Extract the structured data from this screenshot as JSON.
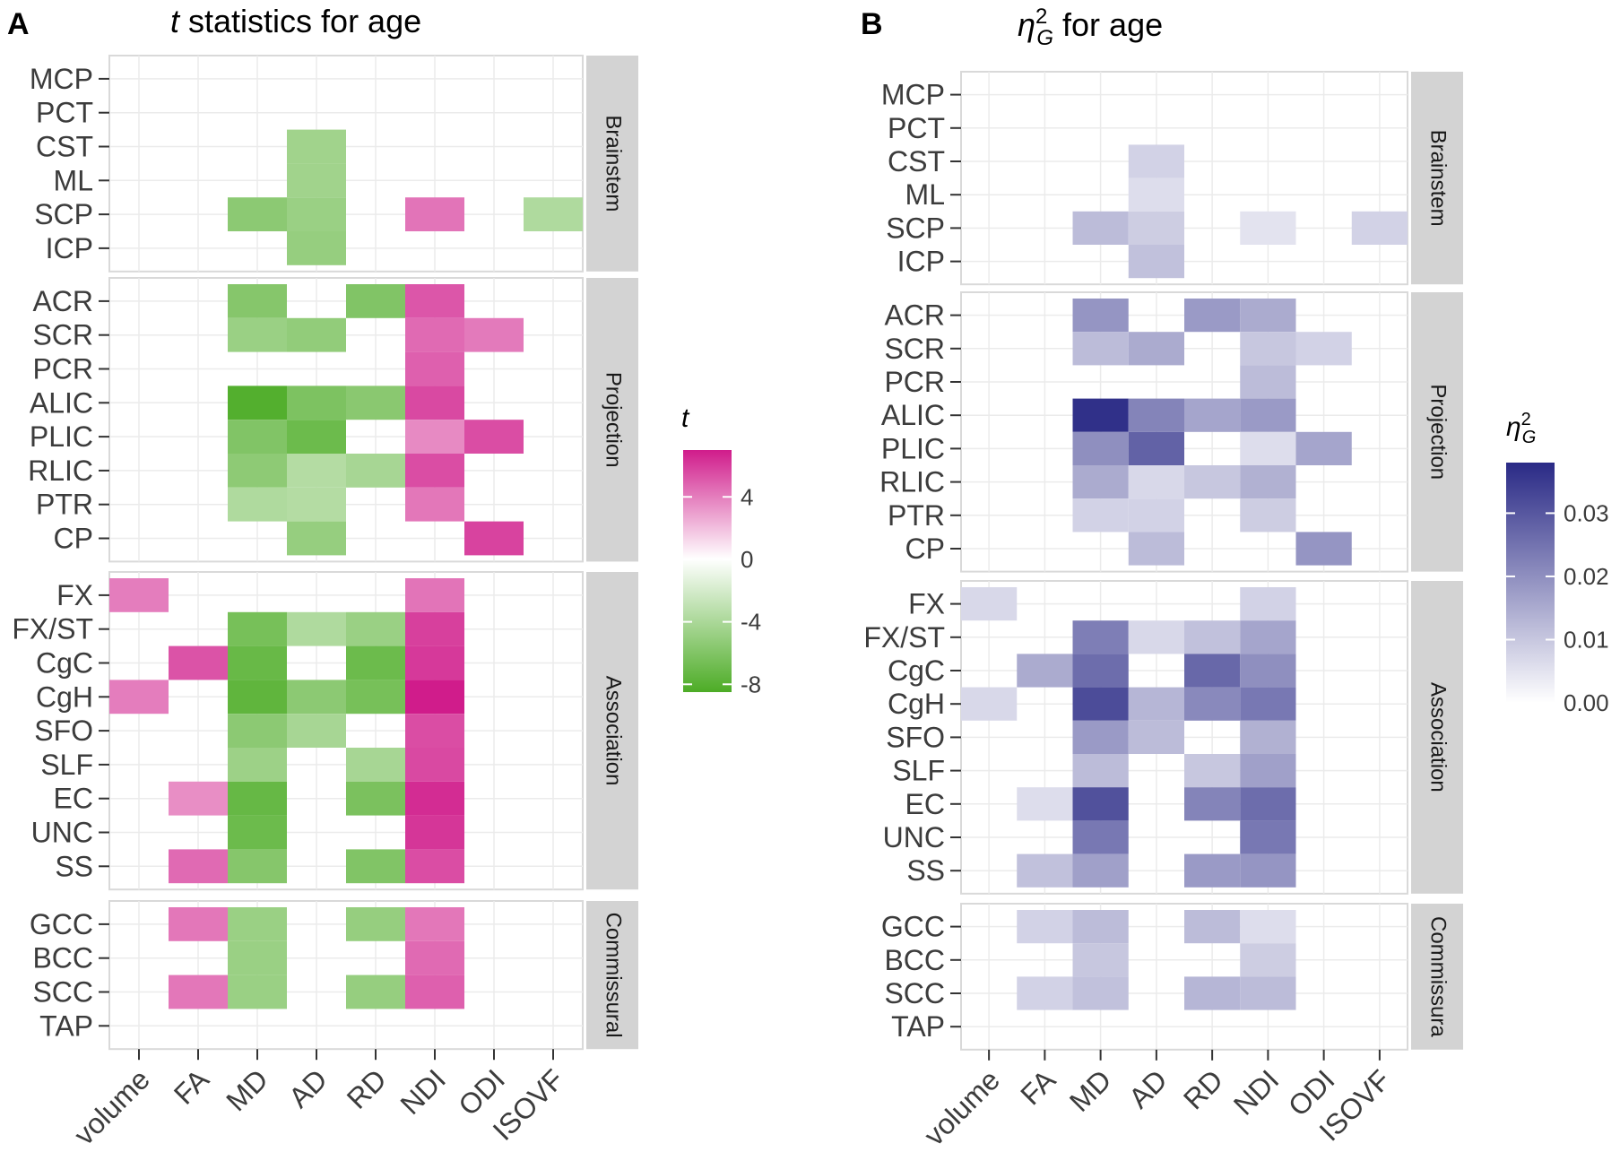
{
  "colors": {
    "green_max": "#4DAC26",
    "pink_max": "#D01C8B",
    "purple_max": "#2A2A86",
    "strip_fill": "#D3D3D3",
    "grid": "#EBEBEB",
    "panel_border": "#D9D9D9"
  },
  "chart_data": [
    {
      "type": "heatmap",
      "panel_label": "A",
      "title_italic": "t",
      "title_rest": " statistics for age",
      "x_categories": [
        "volume",
        "FA",
        "MD",
        "AD",
        "RD",
        "NDI",
        "ODI",
        "ISOVF"
      ],
      "facets": [
        {
          "name": "Brainstem",
          "rows": [
            "MCP",
            "PCT",
            "CST",
            "ML",
            "SCP",
            "ICP"
          ]
        },
        {
          "name": "Projection",
          "rows": [
            "ACR",
            "SCR",
            "PCR",
            "ALIC",
            "PLIC",
            "RLIC",
            "PTR",
            "CP"
          ]
        },
        {
          "name": "Association",
          "rows": [
            "FX",
            "FX/ST",
            "CgC",
            "CgH",
            "SFO",
            "SLF",
            "EC",
            "UNC",
            "SS"
          ]
        },
        {
          "name": "Commissural",
          "rows": [
            "GCC",
            "BCC",
            "SCC",
            "TAP"
          ]
        }
      ],
      "cells": [
        [
          "CST",
          "AD",
          -4.5
        ],
        [
          "ML",
          "AD",
          -4.5
        ],
        [
          "SCP",
          "MD",
          -5.5
        ],
        [
          "SCP",
          "AD",
          -4.8
        ],
        [
          "SCP",
          "NDI",
          4.3
        ],
        [
          "SCP",
          "ISOVF",
          -3.8
        ],
        [
          "ICP",
          "AD",
          -5.0
        ],
        [
          "ACR",
          "MD",
          -5.8
        ],
        [
          "ACR",
          "RD",
          -6.0
        ],
        [
          "ACR",
          "NDI",
          5.2
        ],
        [
          "SCR",
          "MD",
          -4.8
        ],
        [
          "SCR",
          "AD",
          -5.2
        ],
        [
          "SCR",
          "NDI",
          4.6
        ],
        [
          "SCR",
          "ODI",
          4.1
        ],
        [
          "PCR",
          "NDI",
          4.9
        ],
        [
          "ALIC",
          "MD",
          -8.2
        ],
        [
          "ALIC",
          "AD",
          -6.2
        ],
        [
          "ALIC",
          "RD",
          -5.6
        ],
        [
          "ALIC",
          "NDI",
          5.6
        ],
        [
          "PLIC",
          "MD",
          -6.0
        ],
        [
          "PLIC",
          "AD",
          -7.0
        ],
        [
          "PLIC",
          "NDI",
          3.6
        ],
        [
          "PLIC",
          "ODI",
          5.5
        ],
        [
          "RLIC",
          "MD",
          -5.4
        ],
        [
          "RLIC",
          "AD",
          -3.6
        ],
        [
          "RLIC",
          "RD",
          -4.2
        ],
        [
          "RLIC",
          "NDI",
          5.5
        ],
        [
          "PTR",
          "MD",
          -3.8
        ],
        [
          "PTR",
          "AD",
          -3.6
        ],
        [
          "PTR",
          "NDI",
          4.2
        ],
        [
          "CP",
          "AD",
          -5.0
        ],
        [
          "CP",
          "ODI",
          5.8
        ],
        [
          "FX",
          "volume",
          4.0
        ],
        [
          "FX",
          "NDI",
          4.3
        ],
        [
          "FX/ST",
          "MD",
          -6.5
        ],
        [
          "FX/ST",
          "AD",
          -3.8
        ],
        [
          "FX/ST",
          "RD",
          -4.8
        ],
        [
          "FX/ST",
          "NDI",
          5.9
        ],
        [
          "CgC",
          "FA",
          5.3
        ],
        [
          "CgC",
          "MD",
          -7.2
        ],
        [
          "CgC",
          "RD",
          -7.0
        ],
        [
          "CgC",
          "NDI",
          6.1
        ],
        [
          "CgH",
          "volume",
          4.0
        ],
        [
          "CgH",
          "MD",
          -7.6
        ],
        [
          "CgH",
          "AD",
          -5.5
        ],
        [
          "CgH",
          "RD",
          -6.5
        ],
        [
          "CgH",
          "NDI",
          7.0
        ],
        [
          "SFO",
          "MD",
          -5.5
        ],
        [
          "SFO",
          "AD",
          -4.2
        ],
        [
          "SFO",
          "NDI",
          5.5
        ],
        [
          "SLF",
          "MD",
          -4.7
        ],
        [
          "SLF",
          "RD",
          -4.2
        ],
        [
          "SLF",
          "NDI",
          5.6
        ],
        [
          "EC",
          "FA",
          3.5
        ],
        [
          "EC",
          "MD",
          -7.3
        ],
        [
          "EC",
          "RD",
          -6.3
        ],
        [
          "EC",
          "NDI",
          6.5
        ],
        [
          "UNC",
          "MD",
          -7.0
        ],
        [
          "UNC",
          "NDI",
          6.2
        ],
        [
          "SS",
          "FA",
          4.6
        ],
        [
          "SS",
          "MD",
          -5.8
        ],
        [
          "SS",
          "RD",
          -6.0
        ],
        [
          "SS",
          "NDI",
          5.5
        ],
        [
          "GCC",
          "FA",
          4.2
        ],
        [
          "GCC",
          "MD",
          -4.8
        ],
        [
          "GCC",
          "RD",
          -5.0
        ],
        [
          "GCC",
          "NDI",
          4.2
        ],
        [
          "BCC",
          "MD",
          -4.8
        ],
        [
          "BCC",
          "NDI",
          4.6
        ],
        [
          "SCC",
          "FA",
          4.2
        ],
        [
          "SCC",
          "MD",
          -4.8
        ],
        [
          "SCC",
          "RD",
          -5.0
        ],
        [
          "SCC",
          "NDI",
          4.9
        ]
      ],
      "legend": {
        "title": "t",
        "range": [
          -8.5,
          7.0
        ],
        "ticks": [
          4,
          0,
          -4,
          -8
        ],
        "tick_labels": [
          "4",
          "0",
          "-4",
          "-8"
        ]
      }
    },
    {
      "type": "heatmap",
      "panel_label": "B",
      "title_eta": "η",
      "title_sup": "2",
      "title_sub": "G",
      "title_rest": " for age",
      "x_categories": [
        "volume",
        "FA",
        "MD",
        "AD",
        "RD",
        "NDI",
        "ODI",
        "ISOVF"
      ],
      "facets": [
        {
          "name": "Brainstem",
          "rows": [
            "MCP",
            "PCT",
            "CST",
            "ML",
            "SCP",
            "ICP"
          ]
        },
        {
          "name": "Projection",
          "rows": [
            "ACR",
            "SCR",
            "PCR",
            "ALIC",
            "PLIC",
            "RLIC",
            "PTR",
            "CP"
          ]
        },
        {
          "name": "Association",
          "rows": [
            "FX",
            "FX/ST",
            "CgC",
            "CgH",
            "SFO",
            "SLF",
            "EC",
            "UNC",
            "SS"
          ]
        },
        {
          "name": "Commissura",
          "rows": [
            "GCC",
            "BCC",
            "SCC",
            "TAP"
          ]
        }
      ],
      "cells": [
        [
          "CST",
          "AD",
          0.008
        ],
        [
          "ML",
          "AD",
          0.006
        ],
        [
          "SCP",
          "MD",
          0.012
        ],
        [
          "SCP",
          "AD",
          0.009
        ],
        [
          "SCP",
          "NDI",
          0.005
        ],
        [
          "SCP",
          "ISOVF",
          0.008
        ],
        [
          "ICP",
          "AD",
          0.011
        ],
        [
          "ACR",
          "MD",
          0.019
        ],
        [
          "ACR",
          "RD",
          0.018
        ],
        [
          "ACR",
          "NDI",
          0.015
        ],
        [
          "SCR",
          "MD",
          0.012
        ],
        [
          "SCR",
          "AD",
          0.015
        ],
        [
          "SCR",
          "NDI",
          0.01
        ],
        [
          "SCR",
          "ODI",
          0.008
        ],
        [
          "PCR",
          "NDI",
          0.012
        ],
        [
          "ALIC",
          "MD",
          0.037
        ],
        [
          "ALIC",
          "AD",
          0.022
        ],
        [
          "ALIC",
          "RD",
          0.016
        ],
        [
          "ALIC",
          "NDI",
          0.018
        ],
        [
          "PLIC",
          "MD",
          0.02
        ],
        [
          "PLIC",
          "AD",
          0.028
        ],
        [
          "PLIC",
          "NDI",
          0.006
        ],
        [
          "PLIC",
          "ODI",
          0.016
        ],
        [
          "RLIC",
          "MD",
          0.015
        ],
        [
          "RLIC",
          "AD",
          0.007
        ],
        [
          "RLIC",
          "RD",
          0.01
        ],
        [
          "RLIC",
          "NDI",
          0.014
        ],
        [
          "PTR",
          "MD",
          0.008
        ],
        [
          "PTR",
          "AD",
          0.008
        ],
        [
          "PTR",
          "NDI",
          0.009
        ],
        [
          "CP",
          "AD",
          0.012
        ],
        [
          "CP",
          "ODI",
          0.019
        ],
        [
          "FX",
          "volume",
          0.007
        ],
        [
          "FX",
          "NDI",
          0.008
        ],
        [
          "FX/ST",
          "MD",
          0.023
        ],
        [
          "FX/ST",
          "AD",
          0.007
        ],
        [
          "FX/ST",
          "RD",
          0.011
        ],
        [
          "FX/ST",
          "NDI",
          0.016
        ],
        [
          "CgC",
          "FA",
          0.015
        ],
        [
          "CgC",
          "MD",
          0.026
        ],
        [
          "CgC",
          "RD",
          0.027
        ],
        [
          "CgC",
          "NDI",
          0.02
        ],
        [
          "CgH",
          "volume",
          0.007
        ],
        [
          "CgH",
          "MD",
          0.032
        ],
        [
          "CgH",
          "AD",
          0.013
        ],
        [
          "CgH",
          "RD",
          0.021
        ],
        [
          "CgH",
          "NDI",
          0.024
        ],
        [
          "SFO",
          "MD",
          0.018
        ],
        [
          "SFO",
          "AD",
          0.012
        ],
        [
          "SFO",
          "NDI",
          0.014
        ],
        [
          "SLF",
          "MD",
          0.012
        ],
        [
          "SLF",
          "RD",
          0.01
        ],
        [
          "SLF",
          "NDI",
          0.017
        ],
        [
          "EC",
          "FA",
          0.006
        ],
        [
          "EC",
          "MD",
          0.031
        ],
        [
          "EC",
          "RD",
          0.022
        ],
        [
          "EC",
          "NDI",
          0.026
        ],
        [
          "UNC",
          "MD",
          0.024
        ],
        [
          "UNC",
          "NDI",
          0.024
        ],
        [
          "SS",
          "FA",
          0.011
        ],
        [
          "SS",
          "MD",
          0.017
        ],
        [
          "SS",
          "RD",
          0.018
        ],
        [
          "SS",
          "NDI",
          0.019
        ],
        [
          "GCC",
          "FA",
          0.008
        ],
        [
          "GCC",
          "MD",
          0.012
        ],
        [
          "GCC",
          "RD",
          0.012
        ],
        [
          "GCC",
          "NDI",
          0.006
        ],
        [
          "BCC",
          "MD",
          0.01
        ],
        [
          "BCC",
          "NDI",
          0.009
        ],
        [
          "SCC",
          "FA",
          0.008
        ],
        [
          "SCC",
          "MD",
          0.011
        ],
        [
          "SCC",
          "RD",
          0.013
        ],
        [
          "SCC",
          "NDI",
          0.012
        ]
      ],
      "legend": {
        "title_eta": "η",
        "title_sup": "2",
        "title_sub": "G",
        "range": [
          0,
          0.038
        ],
        "ticks": [
          0.03,
          0.02,
          0.01,
          0.0
        ],
        "tick_labels": [
          "0.03",
          "0.02",
          "0.01",
          "0.00"
        ]
      }
    }
  ]
}
